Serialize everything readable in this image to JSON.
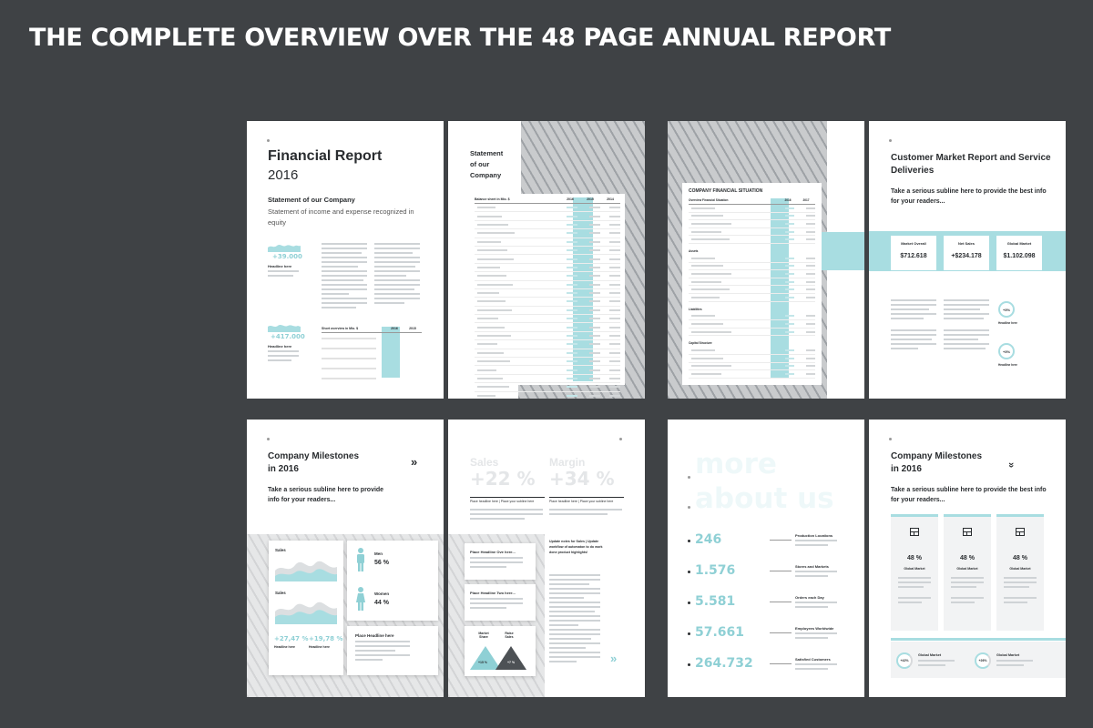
{
  "headline": "THE COMPLETE OVERVIEW OVER THE 48 PAGE ANNUAL REPORT",
  "p1": {
    "title": "Financial Report",
    "year": "2016",
    "subtitle": "Statement of our Company",
    "subtext": "Statement of income and expense recognized in equity",
    "stat1": "+39.000",
    "stat1_label": "Headline here",
    "stat2": "+417.000",
    "stat2_label": "Headline here",
    "table_title": "Short overview in Mio. $",
    "table_cols": [
      "2016",
      "2015"
    ]
  },
  "p2": {
    "title_lines": [
      "Statement",
      "of our",
      "Company"
    ],
    "table_title": "Balance sheet in Mio. $",
    "table_cols": [
      "2016",
      "2015",
      "2014"
    ]
  },
  "p3": {
    "card_title": "COMPANY FINANCIAL SITUATION",
    "table_title": "Overview Financial Situation",
    "cols": [
      "2016",
      "2017"
    ],
    "sections": [
      "Assets",
      "Liabilities",
      "Capital Structure"
    ]
  },
  "p4": {
    "title": "Customer Market Report and Service Deliveries",
    "subline": "Take a serious subline here to provide the best info for your readers...",
    "boxes": [
      {
        "label": "Market Overall",
        "value": "$712.618"
      },
      {
        "label": "Net Sales",
        "value": "+$234.178"
      },
      {
        "label": "Global Market",
        "value": "$1.102.098"
      }
    ],
    "rings": [
      {
        "value": "+3%",
        "label": "Headline here"
      },
      {
        "value": "+3%",
        "label": "Headline here"
      }
    ]
  },
  "p5": {
    "title": "Company Milestones in 2016",
    "subline": "Take a serious subline here to provide info for your readers...",
    "men_label": "Men",
    "men_value": "56 %",
    "women_label": "Women",
    "women_value": "44 %",
    "stat_a": "+27,47 %",
    "stat_a_label": "Headline here",
    "stat_b": "+19,78 %",
    "stat_b_label": "Headline here",
    "chart_label_a": "Sales",
    "chart_label_b": "Sales",
    "card_headline": "Place Headline here"
  },
  "p6": {
    "sales_label": "Sales",
    "sales_value": "+22 %",
    "sales_caption": "Place headline here | Place your subline here",
    "margin_label": "Margin",
    "margin_value": "+34 %",
    "margin_caption": "Place headline here | Place your subline here",
    "card1": "Place Headline Ove here...",
    "card2": "Place Headline Two here...",
    "tri_a_label": "Market Share",
    "tri_a_value": "+15 %",
    "tri_b_label": "Raise Sales",
    "tri_b_value": "+7 %",
    "col_heading": "Update notes for Sales | Update workflow of automaton to do work done product highlights!"
  },
  "p7": {
    "watermark_line1": "more",
    "watermark_line2": "about us",
    "stats": [
      {
        "value": "246",
        "label": "Production Locations"
      },
      {
        "value": "1.576",
        "label": "Stores and Markets"
      },
      {
        "value": "5.581",
        "label": "Orders each Day"
      },
      {
        "value": "57.661",
        "label": "Employees Worldwide"
      },
      {
        "value": "264.732",
        "label": "Satisfied Customers"
      }
    ]
  },
  "p8": {
    "title": "Company Milestones in 2016",
    "subline": "Take a serious subline here to provide the best info for your readers...",
    "cards": [
      {
        "value": "48 %",
        "label": "Global Market"
      },
      {
        "value": "48 %",
        "label": "Global Market"
      },
      {
        "value": "48 %",
        "label": "Global Market"
      }
    ],
    "bottom": [
      {
        "value": "+42%",
        "label": "Global Market"
      },
      {
        "value": "+26%",
        "label": "Global Market"
      }
    ]
  }
}
